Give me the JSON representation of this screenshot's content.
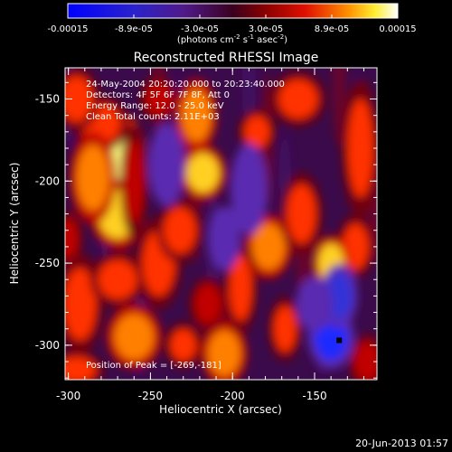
{
  "chart_data": {
    "type": "heatmap",
    "title": "Reconstructed RHESSI Image",
    "xlabel": "Heliocentric X (arcsec)",
    "ylabel": "Heliocentric Y (arcsec)",
    "xlim": [
      -302,
      -112
    ],
    "ylim": [
      -321,
      -131
    ],
    "x_ticks": [
      -300,
      -250,
      -200,
      -150
    ],
    "y_ticks": [
      -150,
      -200,
      -250,
      -300
    ],
    "colorbar": {
      "min": -0.00015,
      "max": 0.00015,
      "tick_labels": [
        "-0.00015",
        "-8.9e-05",
        "-3.0e-05",
        "3.0e-05",
        "8.9e-05",
        "0.00015"
      ],
      "label": "(photons cm",
      "label_sup1": "-2",
      "label_mid": " s",
      "label_sup2": "-1",
      "label_mid2": " asec",
      "label_sup3": "-2",
      "label_end": ")"
    },
    "info_lines": [
      "24-May-2004 20:20:20.000 to 20:23:40.000",
      "Detectors: 4F 5F 6F 7F 8F, Att 0",
      "Energy Range: 12.0 - 25.0 keV",
      "Clean     Total counts: 2.11E+03"
    ],
    "peak_text": "Position of Peak = [-269,-181]",
    "peak": {
      "x": -269,
      "y": -181
    },
    "blobs": [
      {
        "x": -272,
        "y": -185,
        "w": 14,
        "h": 20,
        "v": 1.0
      },
      {
        "x": -270,
        "y": -220,
        "w": 12,
        "h": 15,
        "v": 0.85
      },
      {
        "x": -280,
        "y": -165,
        "w": 12,
        "h": 12,
        "v": 0.6
      },
      {
        "x": -285,
        "y": -198,
        "w": 10,
        "h": 20,
        "v": 0.7
      },
      {
        "x": -295,
        "y": -150,
        "w": 10,
        "h": 14,
        "v": 0.55
      },
      {
        "x": -293,
        "y": -275,
        "w": 10,
        "h": 22,
        "v": 0.6
      },
      {
        "x": -260,
        "y": -295,
        "w": 12,
        "h": 14,
        "v": 0.65
      },
      {
        "x": -270,
        "y": -260,
        "w": 12,
        "h": 12,
        "v": 0.55
      },
      {
        "x": -245,
        "y": -250,
        "w": 10,
        "h": 20,
        "v": 0.55
      },
      {
        "x": -218,
        "y": -195,
        "w": 10,
        "h": 12,
        "v": 0.8
      },
      {
        "x": -222,
        "y": -160,
        "w": 9,
        "h": 16,
        "v": 0.65
      },
      {
        "x": -232,
        "y": -230,
        "w": 10,
        "h": 14,
        "v": 0.55
      },
      {
        "x": -205,
        "y": -305,
        "w": 10,
        "h": 14,
        "v": 0.7
      },
      {
        "x": -178,
        "y": -240,
        "w": 10,
        "h": 14,
        "v": 0.65
      },
      {
        "x": -158,
        "y": -220,
        "w": 9,
        "h": 18,
        "v": 0.6
      },
      {
        "x": -160,
        "y": -150,
        "w": 12,
        "h": 12,
        "v": 0.55
      },
      {
        "x": -122,
        "y": -180,
        "w": 8,
        "h": 30,
        "v": 0.6
      },
      {
        "x": -125,
        "y": -240,
        "w": 8,
        "h": 14,
        "v": 0.5
      },
      {
        "x": -140,
        "y": -250,
        "w": 8,
        "h": 12,
        "v": 0.85
      },
      {
        "x": -295,
        "y": -315,
        "w": 12,
        "h": 8,
        "v": 0.5
      },
      {
        "x": -185,
        "y": -170,
        "w": 8,
        "h": 10,
        "v": 0.5
      },
      {
        "x": -245,
        "y": -150,
        "w": 8,
        "h": 10,
        "v": 0.45
      },
      {
        "x": -230,
        "y": -300,
        "w": 8,
        "h": 10,
        "v": 0.5
      },
      {
        "x": -260,
        "y": -200,
        "w": 6,
        "h": 25,
        "v": 0.4
      },
      {
        "x": -215,
        "y": -275,
        "w": 8,
        "h": 12,
        "v": 0.45
      },
      {
        "x": -195,
        "y": -265,
        "w": 7,
        "h": 20,
        "v": 0.55
      },
      {
        "x": -168,
        "y": -290,
        "w": 7,
        "h": 14,
        "v": 0.5
      },
      {
        "x": -118,
        "y": -310,
        "w": 8,
        "h": 12,
        "v": 0.4
      },
      {
        "x": -300,
        "y": -235,
        "w": 6,
        "h": 12,
        "v": 0.4
      },
      {
        "x": -140,
        "y": -295,
        "w": 10,
        "h": 14,
        "v": -1.0
      },
      {
        "x": -135,
        "y": -270,
        "w": 8,
        "h": 14,
        "v": -0.7
      },
      {
        "x": -150,
        "y": -275,
        "w": 8,
        "h": 12,
        "v": -0.6
      },
      {
        "x": -190,
        "y": -205,
        "w": 8,
        "h": 20,
        "v": -0.5
      },
      {
        "x": -240,
        "y": -190,
        "w": 8,
        "h": 18,
        "v": -0.5
      },
      {
        "x": -205,
        "y": -235,
        "w": 7,
        "h": 14,
        "v": -0.45
      }
    ],
    "dark_marker": {
      "x": -135,
      "y": -297
    }
  },
  "footer": {
    "timestamp": "20-Jun-2013 01:57"
  }
}
